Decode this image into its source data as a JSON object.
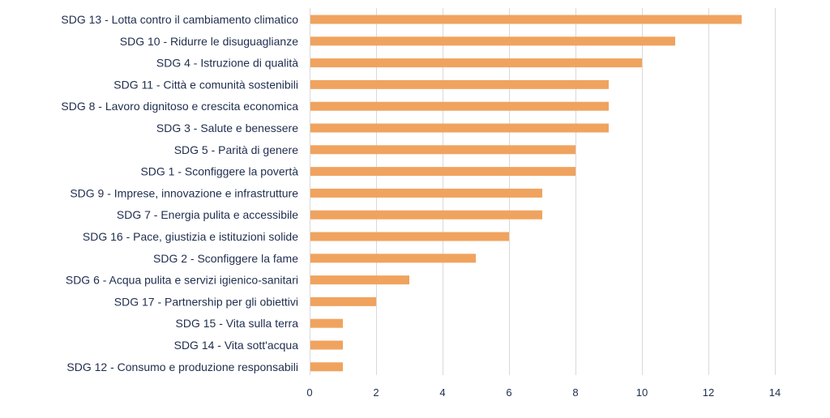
{
  "chart_data": {
    "type": "bar",
    "orientation": "horizontal",
    "categories": [
      "SDG 13 - Lotta contro il cambiamento climatico",
      "SDG 10 - Ridurre le disuguaglianze",
      "SDG 4 - Istruzione di qualità",
      "SDG 11 - Città e comunità sostenibili",
      "SDG 8 - Lavoro dignitoso e crescita economica",
      "SDG 3 - Salute e benessere",
      "SDG 5 - Parità di genere",
      "SDG 1 - Sconfiggere la povertà",
      "SDG 9 - Imprese, innovazione e infrastrutture",
      "SDG 7 - Energia pulita e accessibile",
      "SDG 16 - Pace, giustizia e istituzioni solide",
      "SDG 2 - Sconfiggere la fame",
      "SDG 6 - Acqua pulita e servizi igienico-sanitari",
      "SDG 17 - Partnership per gli obiettivi",
      "SDG 15 - Vita sulla terra",
      "SDG 14 - Vita sott'acqua",
      "SDG 12 - Consumo e produzione responsabili"
    ],
    "values": [
      13,
      11,
      10,
      9,
      9,
      9,
      8,
      8,
      7,
      7,
      6,
      5,
      3,
      2,
      1,
      1,
      1
    ],
    "title": "",
    "xlabel": "",
    "ylabel": "",
    "xlim": [
      0,
      14
    ],
    "x_ticks": [
      0,
      2,
      4,
      6,
      8,
      10,
      12,
      14
    ],
    "grid": true,
    "legend": false,
    "bar_color": "#f0a35e",
    "label_color": "#1f2d4d",
    "grid_color": "#d9d9d9"
  }
}
